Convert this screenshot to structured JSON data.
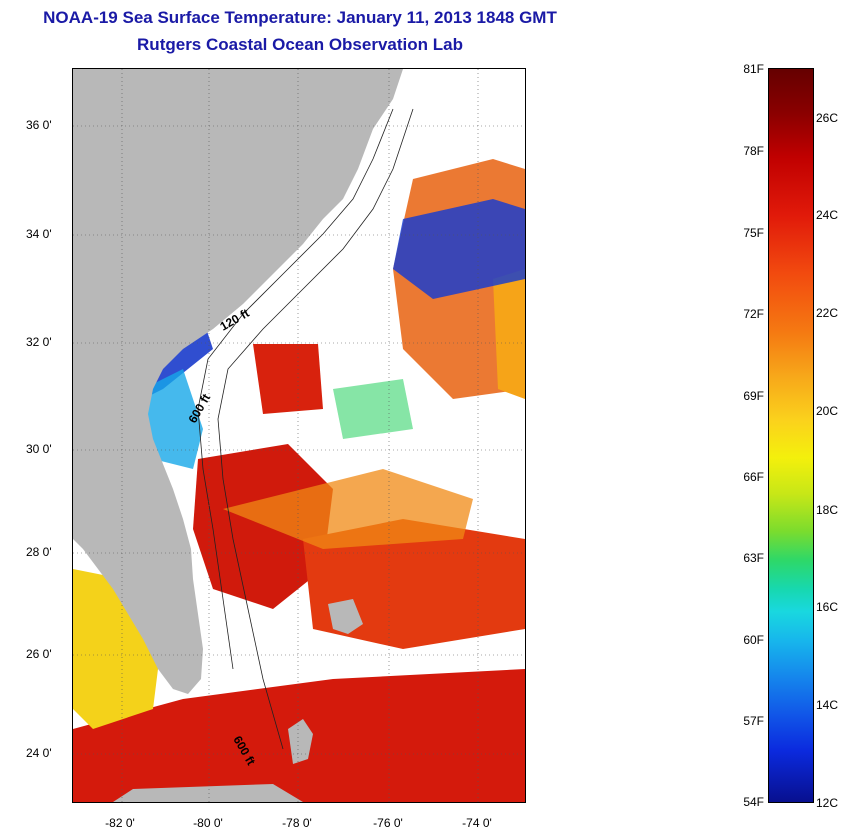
{
  "title": {
    "line1": "NOAA-19 Sea Surface Temperature:  January 11, 2013 1848 GMT",
    "line2": "Rutgers Coastal Ocean Observation Lab"
  },
  "map": {
    "latitude_labels": [
      "36 0'",
      "34 0'",
      "32 0'",
      "30 0'",
      "28 0'",
      "26 0'",
      "24 0'"
    ],
    "longitude_labels": [
      "-82 0'",
      "-80 0'",
      "-78 0'",
      "-76 0'",
      "-74 0'"
    ],
    "contour_labels": [
      "120 ft",
      "600 ft",
      "600 ft"
    ],
    "colors": {
      "land": "#b8b8b8",
      "cloud_no_data": "#ffffff",
      "warm_water": "#d81e0c",
      "cool_water": "#0f3ad6"
    }
  },
  "colorbar": {
    "fahrenheit": [
      "81F",
      "78F",
      "75F",
      "72F",
      "69F",
      "66F",
      "63F",
      "60F",
      "57F",
      "54F"
    ],
    "celsius": [
      "26C",
      "24C",
      "22C",
      "20C",
      "18C",
      "16C",
      "14C",
      "12C"
    ]
  }
}
